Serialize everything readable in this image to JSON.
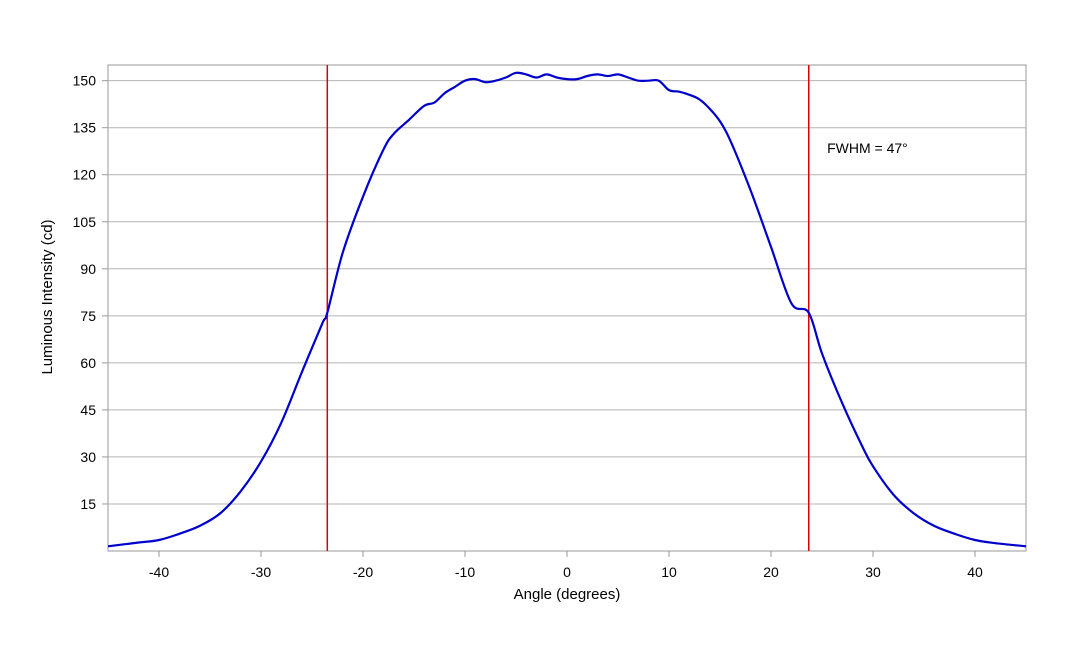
{
  "chart_data": {
    "type": "line",
    "title": "",
    "xlabel": "Angle (degrees)",
    "ylabel": "Luminous Intensity (cd)",
    "xlim": [
      -45,
      45
    ],
    "ylim": [
      0,
      155
    ],
    "x_ticks": [
      "-40",
      "-30",
      "-20",
      "-10",
      "0",
      "10",
      "20",
      "30",
      "40"
    ],
    "x_tick_values": [
      -40,
      -30,
      -20,
      -10,
      0,
      10,
      20,
      30,
      40
    ],
    "y_ticks": [
      "15",
      "30",
      "45",
      "60",
      "75",
      "90",
      "105",
      "120",
      "135",
      "150"
    ],
    "y_tick_values": [
      15,
      30,
      45,
      60,
      75,
      90,
      105,
      120,
      135,
      150
    ],
    "grid": "horizontal",
    "series": [
      {
        "color": "#0000cc",
        "x": [
          -45,
          -42,
          -40,
          -38,
          -36,
          -34,
          -32,
          -30,
          -28,
          -26,
          -24,
          -23.5,
          -22,
          -20,
          -18,
          -17,
          -15.5,
          -14,
          -13,
          -12,
          -11,
          -10,
          -9,
          -8,
          -7,
          -6,
          -5,
          -4,
          -3,
          -2,
          -1,
          0,
          1,
          2,
          3,
          4,
          5,
          6,
          7,
          8,
          9,
          10,
          11,
          12,
          13,
          14,
          15,
          16,
          18,
          20,
          22,
          23.7,
          25,
          27,
          29,
          30,
          32,
          34,
          36,
          38,
          40,
          42,
          45
        ],
        "y": [
          1.5,
          2.7,
          3.5,
          5.5,
          8,
          12,
          19,
          28.5,
          41,
          57,
          72.5,
          76,
          95,
          113,
          128,
          133,
          137.5,
          142,
          143,
          146,
          148,
          150,
          150.5,
          149.5,
          150,
          151,
          152.5,
          152,
          151,
          152,
          151,
          150.5,
          150.5,
          151.5,
          152,
          151.5,
          152,
          151,
          150,
          150,
          150,
          147,
          146.5,
          145.5,
          144,
          141,
          137,
          131,
          115,
          97,
          79,
          76,
          63,
          47,
          33,
          27,
          18,
          12,
          8,
          5.5,
          3.5,
          2.5,
          1.5
        ]
      }
    ],
    "reference_lines": [
      {
        "x": -23.5,
        "color": "#dd0000"
      },
      {
        "x": 23.7,
        "color": "#dd0000"
      }
    ],
    "annotations": [
      {
        "text": "FWHM = 47°",
        "x": 25.5,
        "y": 127
      }
    ]
  }
}
